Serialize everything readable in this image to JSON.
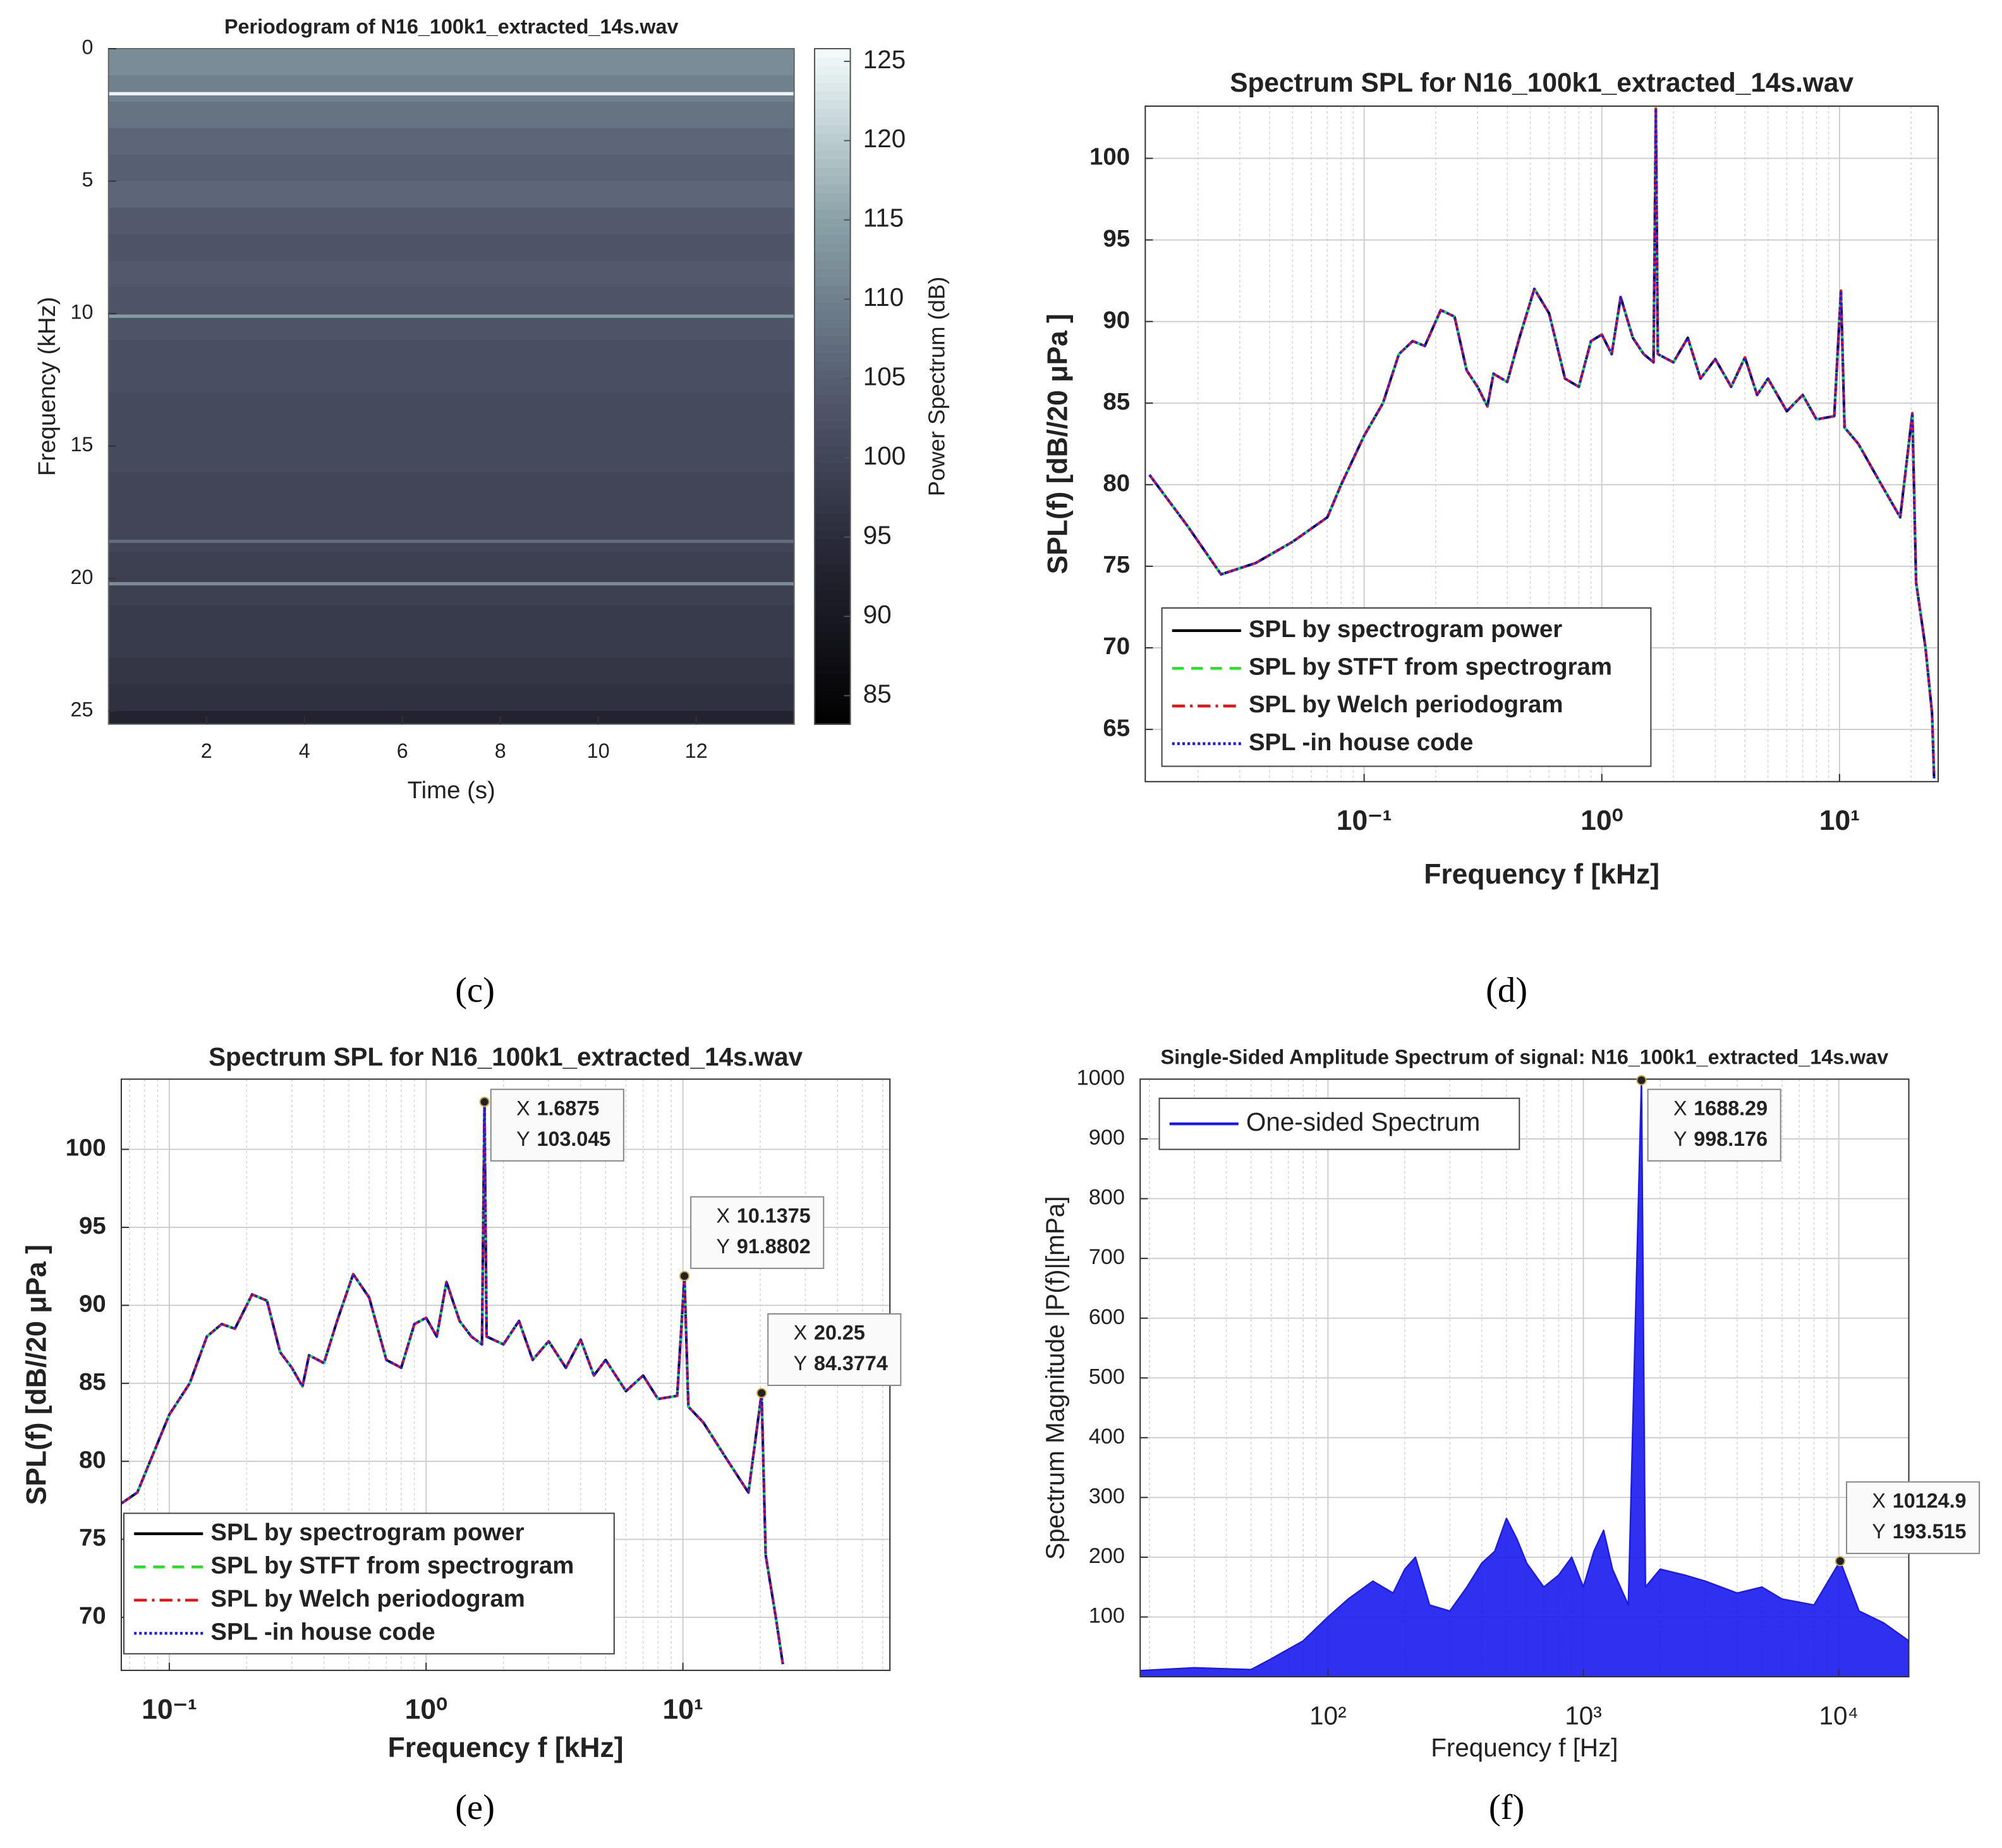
{
  "chart_data": [
    {
      "type": "heatmap",
      "title": "Periodogram of N16_100k1_extracted_14s.wav",
      "panel": "(c)",
      "xlabel": "Time (s)",
      "ylabel": "Frequency (kHz)",
      "colorbar_label": "Power Spectrum (dB)",
      "colormap": "bone",
      "xlim": [
        0,
        14
      ],
      "xticks": [
        2,
        4,
        6,
        8,
        10,
        12
      ],
      "ylim": [
        0,
        25.5
      ],
      "yticks": [
        0,
        5,
        10,
        15,
        20,
        25
      ],
      "ydir": "reverse",
      "clim": [
        83.2,
        125.8
      ],
      "cticks": [
        85,
        90,
        95,
        100,
        105,
        110,
        115,
        120,
        125
      ],
      "y": [
        0,
        1,
        2,
        3,
        4,
        5,
        6,
        7,
        8,
        9,
        10,
        11,
        12,
        13,
        14,
        15,
        16,
        17,
        18,
        19,
        20,
        21,
        22,
        23,
        24,
        25
      ],
      "z": [
        112,
        110,
        108,
        106,
        105,
        106,
        104,
        103,
        104,
        103,
        103,
        102,
        102,
        101,
        101,
        101,
        100,
        100,
        100,
        99,
        99,
        98,
        98,
        97,
        96,
        93
      ],
      "tones": [
        {
          "y": 1.7,
          "z": 125
        },
        {
          "y": 10.1,
          "z": 114
        },
        {
          "y": 18.6,
          "z": 107
        },
        {
          "y": 20.2,
          "z": 112
        }
      ]
    },
    {
      "type": "line",
      "title": "Spectrum SPL  for N16_100k1_extracted_14s.wav",
      "panel": "(d)",
      "xlabel": "Frequency f [kHz]",
      "ylabel": "SPL(f) [dB//20 μPa ]",
      "xscale": "log",
      "grid": true,
      "legend": "lower left",
      "xlim": [
        0.012,
        26
      ],
      "xticks": [
        {
          "value": 0.1,
          "label": "10⁻¹"
        },
        {
          "value": 1,
          "label": "10⁰"
        },
        {
          "value": 10,
          "label": "10¹"
        }
      ],
      "ylim": [
        61.8,
        103.2
      ],
      "yticks": [
        65,
        70,
        75,
        80,
        85,
        90,
        95,
        100
      ],
      "x": [
        0.0125,
        0.018,
        0.025,
        0.035,
        0.05,
        0.07,
        0.08,
        0.1,
        0.12,
        0.14,
        0.16,
        0.18,
        0.21,
        0.24,
        0.27,
        0.3,
        0.33,
        0.35,
        0.4,
        0.45,
        0.52,
        0.6,
        0.7,
        0.8,
        0.9,
        1.0,
        1.1,
        1.2,
        1.35,
        1.5,
        1.65,
        1.6875,
        1.72,
        2.0,
        2.3,
        2.6,
        3.0,
        3.5,
        4.0,
        4.5,
        5.0,
        6.0,
        7.0,
        8.0,
        9.5,
        10.1375,
        10.5,
        12,
        15,
        18,
        20.25,
        21,
        23,
        24.5,
        25
      ],
      "series": [
        {
          "name": "SPL by spectrogram power",
          "color": "#000000",
          "linestyle": "solid",
          "values": [
            80.6,
            77.5,
            74.5,
            75.2,
            76.5,
            78,
            80,
            83,
            85,
            88,
            88.8,
            88.5,
            90.7,
            90.3,
            87,
            86,
            84.8,
            86.8,
            86.3,
            89,
            92,
            90.5,
            86.5,
            86,
            88.8,
            89.2,
            88,
            91.5,
            89,
            88,
            87.5,
            103.045,
            88,
            87.5,
            89,
            86.5,
            87.7,
            86,
            87.8,
            85.5,
            86.5,
            84.5,
            85.5,
            84,
            84.2,
            91.88,
            83.5,
            82.5,
            80,
            78,
            84.38,
            74,
            70,
            66,
            62
          ]
        },
        {
          "name": "SPL by STFT from spectrogram",
          "color": "#22e222",
          "linestyle": "dashed",
          "values": [
            80.6,
            77.5,
            74.5,
            75.2,
            76.5,
            78,
            80,
            83,
            85,
            88,
            88.8,
            88.5,
            90.7,
            90.3,
            87,
            86,
            84.8,
            86.8,
            86.3,
            89,
            92,
            90.5,
            86.5,
            86,
            88.8,
            89.2,
            88,
            91.5,
            89,
            88,
            87.5,
            103.045,
            88,
            87.5,
            89,
            86.5,
            87.7,
            86,
            87.8,
            85.5,
            86.5,
            84.5,
            85.5,
            84,
            84.2,
            91.88,
            83.5,
            82.5,
            80,
            78,
            84.38,
            74,
            70,
            66,
            62
          ]
        },
        {
          "name": "SPL by Welch periodogram",
          "color": "#ee1111",
          "linestyle": "dashdot",
          "values": [
            80.6,
            77.5,
            74.5,
            75.2,
            76.5,
            78,
            80,
            83,
            85,
            88,
            88.8,
            88.5,
            90.7,
            90.3,
            87,
            86,
            84.8,
            86.8,
            86.3,
            89,
            92,
            90.5,
            86.5,
            86,
            88.8,
            89.2,
            88,
            91.5,
            89,
            88,
            87.5,
            103.045,
            88,
            87.5,
            89,
            86.5,
            87.7,
            86,
            87.8,
            85.5,
            86.5,
            84.5,
            85.5,
            84,
            84.2,
            91.88,
            83.5,
            82.5,
            80,
            78,
            84.38,
            74,
            70,
            66,
            62
          ]
        },
        {
          "name": "SPL -in house code",
          "color": "#1a1aee",
          "linestyle": "dotted",
          "values": [
            80.6,
            77.5,
            74.5,
            75.2,
            76.5,
            78,
            80,
            83,
            85,
            88,
            88.8,
            88.5,
            90.7,
            90.3,
            87,
            86,
            84.8,
            86.8,
            86.3,
            89,
            92,
            90.5,
            86.5,
            86,
            88.8,
            89.2,
            88,
            91.5,
            89,
            88,
            87.5,
            103.045,
            88,
            87.5,
            89,
            86.5,
            87.7,
            86,
            87.8,
            85.5,
            86.5,
            84.5,
            85.5,
            84,
            84.2,
            91.88,
            83.5,
            82.5,
            80,
            78,
            84.38,
            74,
            70,
            66,
            62
          ]
        }
      ]
    },
    {
      "type": "line",
      "title": "Spectrum SPL  for N16_100k1_extracted_14s.wav",
      "panel": "(e)",
      "xlabel": "Frequency f [kHz]",
      "ylabel": "SPL(f) [dB//20 μPa ]",
      "xscale": "log",
      "grid": true,
      "legend": "lower left",
      "xlim": [
        0.065,
        64
      ],
      "xticks": [
        {
          "value": 0.1,
          "label": "10⁻¹"
        },
        {
          "value": 1,
          "label": "10⁰"
        },
        {
          "value": 10,
          "label": "10¹"
        }
      ],
      "ylim": [
        66.6,
        104.5
      ],
      "yticks": [
        70,
        75,
        80,
        85,
        90,
        95,
        100
      ],
      "datatip_labels": [
        "X",
        "Y"
      ],
      "annotations": [
        {
          "x": 1.6875,
          "y": 103.045
        },
        {
          "x": 10.1375,
          "y": 91.8802
        },
        {
          "x": 20.25,
          "y": 84.3774
        }
      ],
      "x": [
        0.065,
        0.075,
        0.1,
        0.12,
        0.14,
        0.16,
        0.18,
        0.21,
        0.24,
        0.27,
        0.3,
        0.33,
        0.35,
        0.4,
        0.45,
        0.52,
        0.6,
        0.7,
        0.8,
        0.9,
        1.0,
        1.1,
        1.2,
        1.35,
        1.5,
        1.65,
        1.6875,
        1.72,
        2.0,
        2.3,
        2.6,
        3.0,
        3.5,
        4.0,
        4.5,
        5.0,
        6.0,
        7.0,
        8.0,
        9.5,
        10.1375,
        10.5,
        12,
        15,
        18,
        20.25,
        21,
        23,
        24.5
      ],
      "series": [
        {
          "name": "SPL by spectrogram power",
          "color": "#000000",
          "linestyle": "solid",
          "values": [
            77.3,
            78,
            83,
            85,
            88,
            88.8,
            88.5,
            90.7,
            90.3,
            87,
            86,
            84.8,
            86.8,
            86.3,
            89,
            92,
            90.5,
            86.5,
            86,
            88.8,
            89.2,
            88,
            91.5,
            89,
            88,
            87.5,
            103.045,
            88,
            87.5,
            89,
            86.5,
            87.7,
            86,
            87.8,
            85.5,
            86.5,
            84.5,
            85.5,
            84,
            84.2,
            91.8802,
            83.5,
            82.5,
            80,
            78,
            84.3774,
            74,
            70,
            67
          ]
        },
        {
          "name": "SPL by STFT from spectrogram",
          "color": "#22e222",
          "linestyle": "dashed",
          "values": [
            77.3,
            78,
            83,
            85,
            88,
            88.8,
            88.5,
            90.7,
            90.3,
            87,
            86,
            84.8,
            86.8,
            86.3,
            89,
            92,
            90.5,
            86.5,
            86,
            88.8,
            89.2,
            88,
            91.5,
            89,
            88,
            87.5,
            103.045,
            88,
            87.5,
            89,
            86.5,
            87.7,
            86,
            87.8,
            85.5,
            86.5,
            84.5,
            85.5,
            84,
            84.2,
            91.8802,
            83.5,
            82.5,
            80,
            78,
            84.3774,
            74,
            70,
            67
          ]
        },
        {
          "name": "SPL by Welch periodogram",
          "color": "#ee1111",
          "linestyle": "dashdot",
          "values": [
            77.3,
            78,
            83,
            85,
            88,
            88.8,
            88.5,
            90.7,
            90.3,
            87,
            86,
            84.8,
            86.8,
            86.3,
            89,
            92,
            90.5,
            86.5,
            86,
            88.8,
            89.2,
            88,
            91.5,
            89,
            88,
            87.5,
            103.045,
            88,
            87.5,
            89,
            86.5,
            87.7,
            86,
            87.8,
            85.5,
            86.5,
            84.5,
            85.5,
            84,
            84.2,
            91.8802,
            83.5,
            82.5,
            80,
            78,
            84.3774,
            74,
            70,
            67
          ]
        },
        {
          "name": "SPL -in house code",
          "color": "#1a1aee",
          "linestyle": "dotted",
          "values": [
            77.3,
            78,
            83,
            85,
            88,
            88.8,
            88.5,
            90.7,
            90.3,
            87,
            86,
            84.8,
            86.8,
            86.3,
            89,
            92,
            90.5,
            86.5,
            86,
            88.8,
            89.2,
            88,
            91.5,
            89,
            88,
            87.5,
            103.045,
            88,
            87.5,
            89,
            86.5,
            87.7,
            86,
            87.8,
            85.5,
            86.5,
            84.5,
            85.5,
            84,
            84.2,
            91.8802,
            83.5,
            82.5,
            80,
            78,
            84.3774,
            74,
            70,
            67
          ]
        }
      ]
    },
    {
      "type": "line",
      "title": "Single-Sided Amplitude Spectrum of signal: N16_100k1_extracted_14s.wav",
      "panel": "(f)",
      "xlabel": "Frequency f [Hz]",
      "ylabel": "Spectrum Magnitude |P(f)|[mPa]",
      "xscale": "log",
      "grid": true,
      "legend": "upper left",
      "xlim": [
        18.4,
        18800
      ],
      "xticks": [
        {
          "value": 100,
          "label": "10²"
        },
        {
          "value": 1000,
          "label": "10³"
        },
        {
          "value": 10000,
          "label": "10⁴"
        }
      ],
      "ylim": [
        0,
        1000
      ],
      "yticks": [
        100,
        200,
        300,
        400,
        500,
        600,
        700,
        800,
        900,
        1000
      ],
      "datatip_labels": [
        "X",
        "Y"
      ],
      "annotations": [
        {
          "x": 1688.29,
          "y": 998.176
        },
        {
          "x": 10124.9,
          "y": 193.515
        }
      ],
      "x": [
        18,
        30,
        50,
        60,
        80,
        100,
        120,
        150,
        180,
        200,
        220,
        250,
        300,
        350,
        400,
        450,
        500,
        550,
        600,
        700,
        800,
        900,
        1000,
        1100,
        1200,
        1300,
        1500,
        1688.29,
        1750,
        2000,
        2500,
        3000,
        4000,
        5000,
        6000,
        8000,
        10124.9,
        12000,
        15000,
        18800
      ],
      "series": [
        {
          "name": "One-sided Spectrum",
          "color": "#1a1aee",
          "linestyle": "solid",
          "area": true,
          "values": [
            10,
            15,
            12,
            30,
            60,
            100,
            130,
            160,
            140,
            180,
            200,
            120,
            110,
            150,
            190,
            210,
            265,
            230,
            190,
            150,
            170,
            200,
            150,
            210,
            245,
            180,
            120,
            998.176,
            150,
            180,
            170,
            160,
            140,
            150,
            130,
            120,
            193.515,
            110,
            90,
            60
          ]
        }
      ]
    }
  ]
}
